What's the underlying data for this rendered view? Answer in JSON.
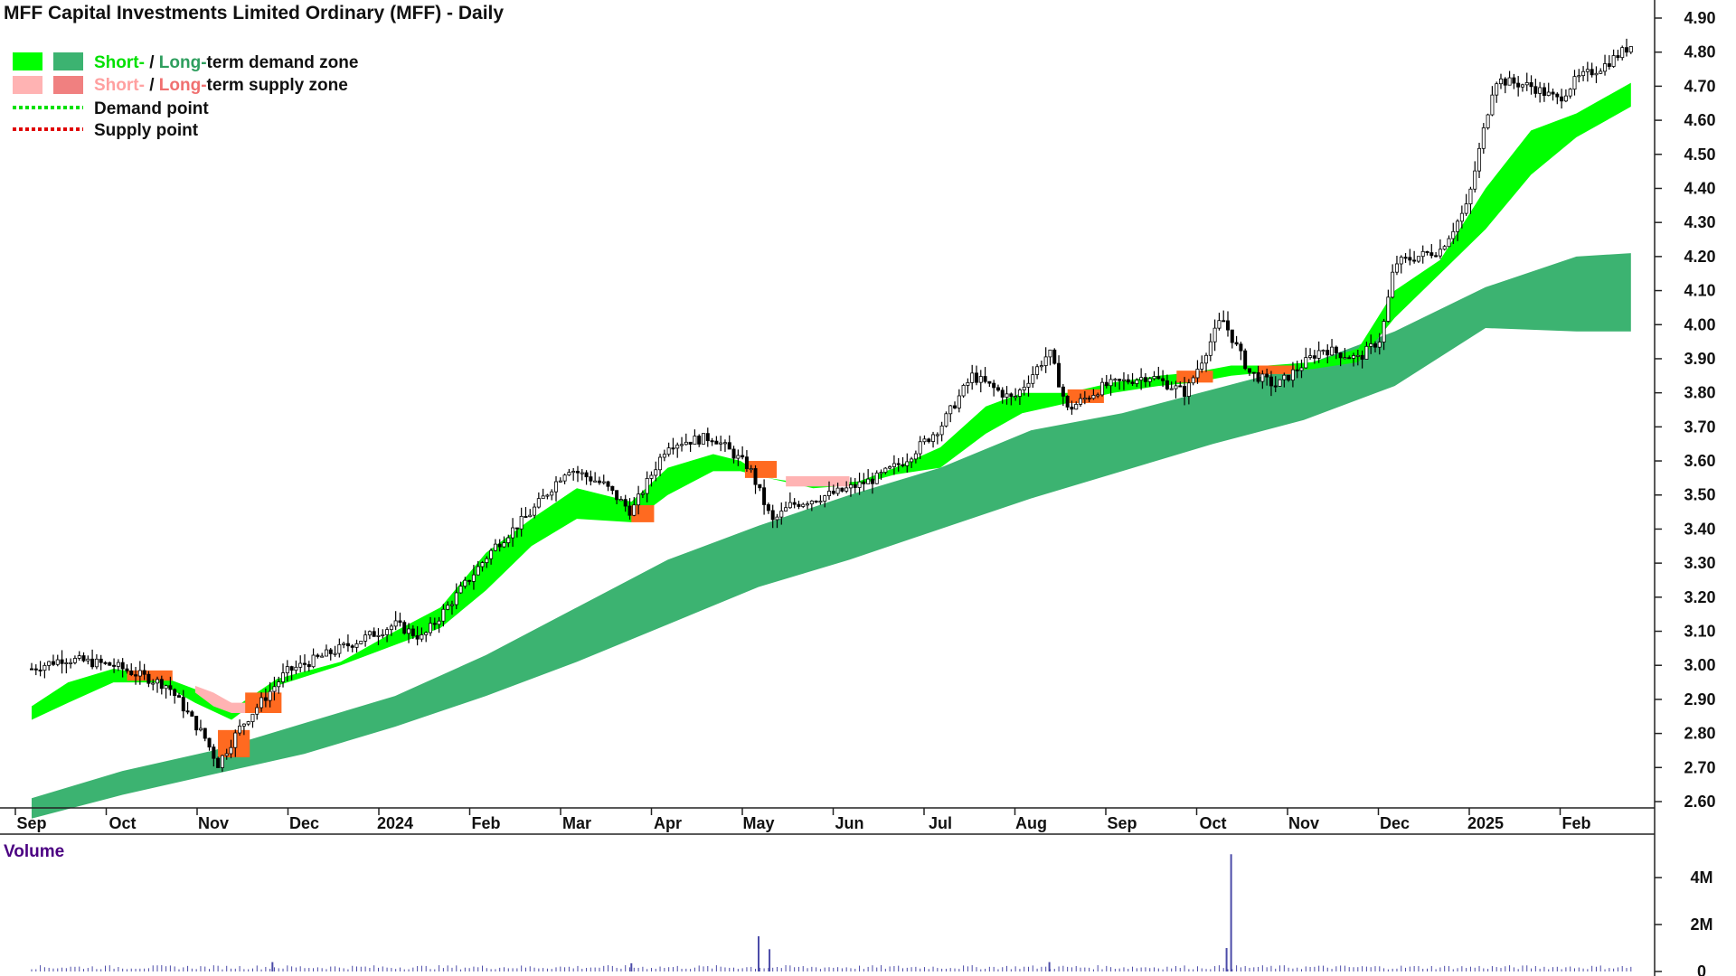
{
  "title": "MFF Capital Investments Limited Ordinary (MFF) - Daily",
  "legend": {
    "demand_zone": {
      "short": "Short-",
      "sep": " / ",
      "long": "Long-",
      "rest": "term demand zone"
    },
    "supply_zone": {
      "short": "Short-",
      "sep": " / ",
      "long": "Long-",
      "rest": "term supply zone"
    },
    "demand_point": "Demand point",
    "supply_point": "Supply point"
  },
  "colors": {
    "short_demand": "#00ff00",
    "long_demand": "#3cb371",
    "short_supply": "#ffb3b3",
    "long_supply": "#f08080",
    "overlap_supply": "#ff6a20",
    "volume": "#4b4ba8",
    "volume_label": "#4b0082"
  },
  "volume_label": "Volume",
  "chart_data": {
    "type": "candlestick",
    "timeframe": "Daily",
    "x_tick_labels": [
      "Sep",
      "Oct",
      "Nov",
      "Dec",
      "2024",
      "Feb",
      "Mar",
      "Apr",
      "May",
      "Jun",
      "Jul",
      "Aug",
      "Sep",
      "Oct",
      "Nov",
      "Dec",
      "2025",
      "Feb"
    ],
    "y_tick_labels": [
      "4.90",
      "4.80",
      "4.70",
      "4.60",
      "4.50",
      "4.40",
      "4.30",
      "4.20",
      "4.10",
      "4.00",
      "3.90",
      "3.80",
      "3.70",
      "3.60",
      "3.50",
      "3.40",
      "3.30",
      "3.20",
      "3.10",
      "3.00",
      "2.90",
      "2.80",
      "2.70",
      "2.60"
    ],
    "ylim": [
      2.55,
      4.93
    ],
    "price_path": [
      [
        0,
        2.99
      ],
      [
        0.35,
        3.02
      ],
      [
        0.9,
        3.0
      ],
      [
        1.5,
        2.94
      ],
      [
        1.9,
        2.79
      ],
      [
        2.05,
        2.71
      ],
      [
        2.3,
        2.82
      ],
      [
        2.8,
        2.98
      ],
      [
        3.4,
        3.05
      ],
      [
        4.0,
        3.12
      ],
      [
        4.3,
        3.08
      ],
      [
        4.6,
        3.18
      ],
      [
        5.1,
        3.35
      ],
      [
        5.5,
        3.45
      ],
      [
        5.9,
        3.58
      ],
      [
        6.3,
        3.53
      ],
      [
        6.6,
        3.45
      ],
      [
        7.0,
        3.65
      ],
      [
        7.5,
        3.67
      ],
      [
        7.9,
        3.58
      ],
      [
        8.15,
        3.42
      ],
      [
        8.35,
        3.47
      ],
      [
        8.9,
        3.51
      ],
      [
        9.3,
        3.55
      ],
      [
        9.6,
        3.6
      ],
      [
        10.0,
        3.7
      ],
      [
        10.35,
        3.85
      ],
      [
        10.8,
        3.78
      ],
      [
        11.2,
        3.92
      ],
      [
        11.4,
        3.75
      ],
      [
        11.8,
        3.82
      ],
      [
        12.3,
        3.85
      ],
      [
        12.7,
        3.8
      ],
      [
        13.1,
        4.02
      ],
      [
        13.4,
        3.86
      ],
      [
        13.7,
        3.82
      ],
      [
        14.2,
        3.93
      ],
      [
        14.6,
        3.9
      ],
      [
        14.85,
        3.96
      ],
      [
        15.0,
        4.18
      ],
      [
        15.5,
        4.22
      ],
      [
        15.8,
        4.35
      ],
      [
        16.1,
        4.72
      ],
      [
        16.5,
        4.7
      ],
      [
        16.8,
        4.66
      ],
      [
        17.0,
        4.72
      ],
      [
        17.3,
        4.76
      ],
      [
        17.6,
        4.82
      ]
    ],
    "zones": {
      "short_term_demand": [
        [
          0,
          2.88,
          2.84
        ],
        [
          0.4,
          2.95,
          2.89
        ],
        [
          0.9,
          2.99,
          2.95
        ],
        [
          1.4,
          2.97,
          2.95
        ],
        [
          1.8,
          2.93,
          2.89
        ],
        [
          2.2,
          2.87,
          2.84
        ],
        [
          2.7,
          2.96,
          2.94
        ],
        [
          3.4,
          3.01,
          3.0
        ],
        [
          4.0,
          3.1,
          3.06
        ],
        [
          4.5,
          3.17,
          3.11
        ],
        [
          5.0,
          3.33,
          3.22
        ],
        [
          5.5,
          3.43,
          3.35
        ],
        [
          6.0,
          3.52,
          3.43
        ],
        [
          6.6,
          3.48,
          3.42
        ],
        [
          7.0,
          3.58,
          3.5
        ],
        [
          7.5,
          3.62,
          3.57
        ],
        [
          7.8,
          3.6,
          3.57
        ],
        [
          8.1,
          3.55,
          3.55
        ],
        [
          8.6,
          3.53,
          3.52
        ],
        [
          9.1,
          3.54,
          3.53
        ],
        [
          9.5,
          3.58,
          3.56
        ],
        [
          10.0,
          3.64,
          3.58
        ],
        [
          10.5,
          3.76,
          3.68
        ],
        [
          10.9,
          3.8,
          3.74
        ],
        [
          11.4,
          3.8,
          3.77
        ],
        [
          11.9,
          3.83,
          3.8
        ],
        [
          12.4,
          3.85,
          3.82
        ],
        [
          12.8,
          3.86,
          3.83
        ],
        [
          13.2,
          3.88,
          3.85
        ],
        [
          13.6,
          3.88,
          3.86
        ],
        [
          14.1,
          3.89,
          3.87
        ],
        [
          14.6,
          3.93,
          3.89
        ],
        [
          15.0,
          4.1,
          4.02
        ],
        [
          15.5,
          4.19,
          4.15
        ],
        [
          16.0,
          4.4,
          4.28
        ],
        [
          16.5,
          4.57,
          4.44
        ],
        [
          17.0,
          4.62,
          4.55
        ],
        [
          17.6,
          4.71,
          4.64
        ]
      ],
      "long_term_demand": [
        [
          0,
          2.61,
          2.55
        ],
        [
          1,
          2.69,
          2.62
        ],
        [
          2,
          2.75,
          2.68
        ],
        [
          3,
          2.83,
          2.74
        ],
        [
          4,
          2.91,
          2.82
        ],
        [
          5,
          3.03,
          2.91
        ],
        [
          6,
          3.17,
          3.01
        ],
        [
          7,
          3.31,
          3.12
        ],
        [
          8,
          3.41,
          3.23
        ],
        [
          9,
          3.5,
          3.31
        ],
        [
          10,
          3.58,
          3.4
        ],
        [
          11,
          3.69,
          3.49
        ],
        [
          12,
          3.74,
          3.57
        ],
        [
          13,
          3.81,
          3.65
        ],
        [
          14,
          3.88,
          3.72
        ],
        [
          15,
          3.98,
          3.82
        ],
        [
          16,
          4.11,
          3.99
        ],
        [
          17,
          4.2,
          3.98
        ],
        [
          17.6,
          4.21,
          3.98
        ]
      ]
    },
    "volume": {
      "ylim": [
        0,
        5200000
      ],
      "y_tick_labels": [
        "4M",
        "2M",
        "0"
      ],
      "baseline": 150000,
      "spikes": [
        [
          8.0,
          1500000
        ],
        [
          8.12,
          950000
        ],
        [
          13.2,
          5000000
        ],
        [
          13.15,
          1000000
        ],
        [
          11.2,
          400000
        ],
        [
          2.65,
          400000
        ],
        [
          6.6,
          350000
        ]
      ]
    }
  }
}
